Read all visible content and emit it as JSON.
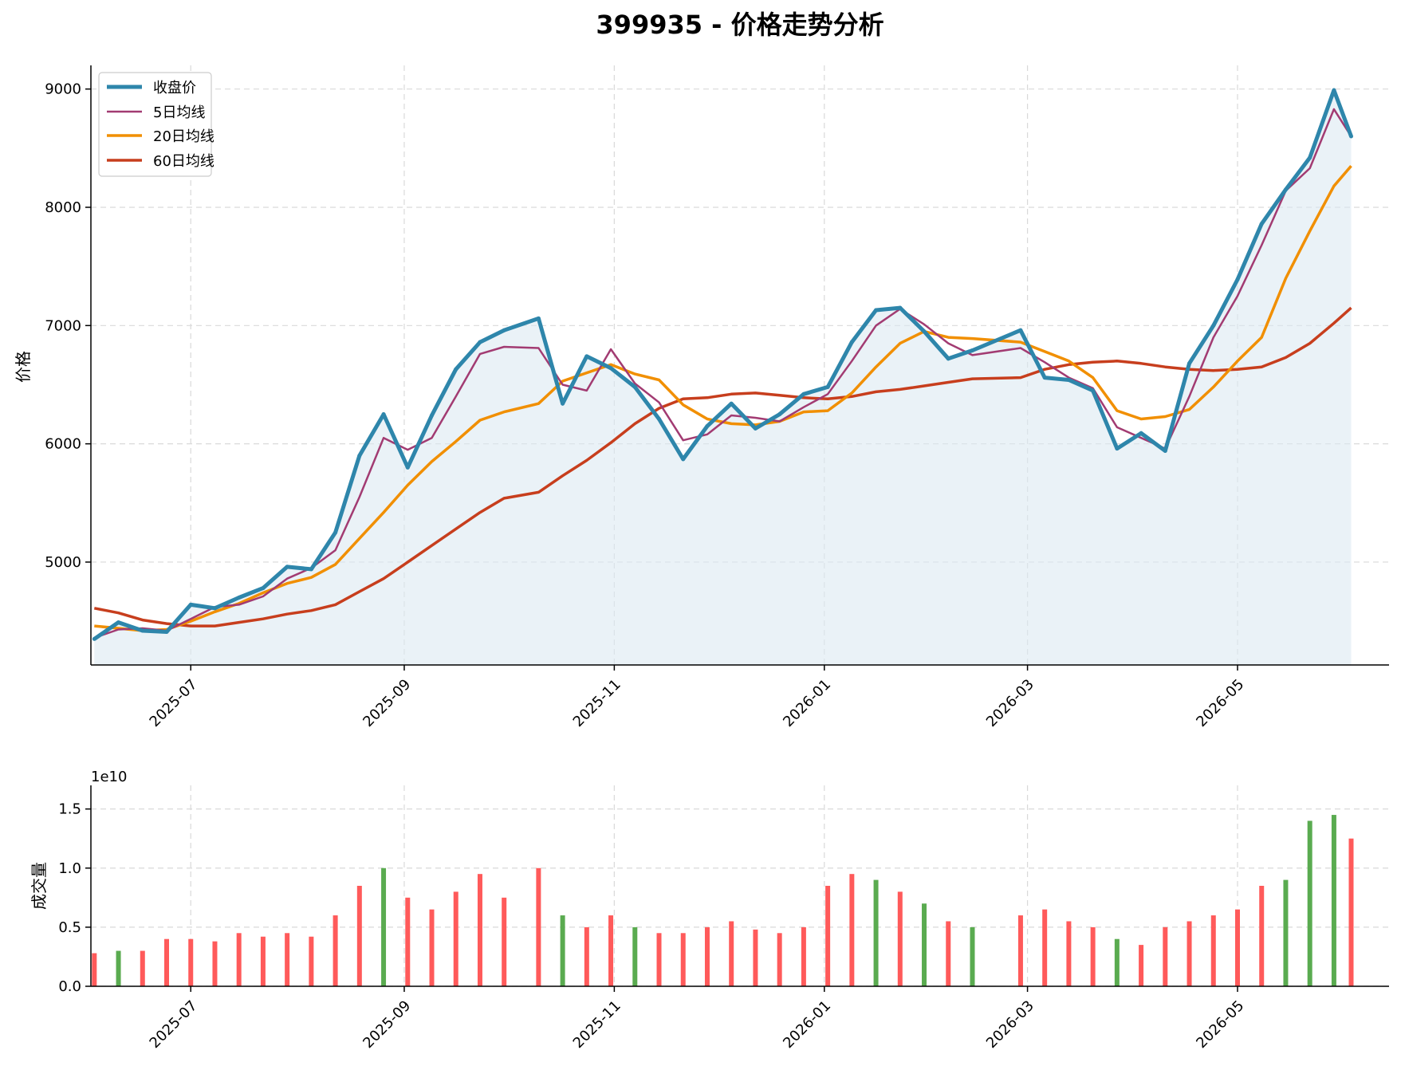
{
  "title": "399935 - 价格走势分析",
  "colors": {
    "close": "#2e86ab",
    "ma5": "#a23b72",
    "ma20": "#f18f01",
    "ma60": "#c73e1d",
    "fill": "#dce9f2",
    "up": "#ff5a5a",
    "down": "#5aab50"
  },
  "legend": {
    "close": "收盘价",
    "ma5": "5日均线",
    "ma20": "20日均线",
    "ma60": "60日均线"
  },
  "price_ticks": [
    "5000",
    "6000",
    "7000",
    "8000",
    "9000"
  ],
  "volume_ticks": [
    "0.0",
    "0.5",
    "1.0",
    "1.5"
  ],
  "x_ticks": [
    "2025-07",
    "2025-09",
    "2025-11",
    "2026-01",
    "2026-03",
    "2026-05"
  ],
  "volume_offset_text": "1e10",
  "volume_ylabel": "成交量",
  "price_ylabel": "价格",
  "chart_data": [
    {
      "type": "line",
      "title": "399935 - 价格走势分析",
      "ylabel": "价格",
      "ylim": [
        4130,
        9200
      ],
      "xlim": [
        "2025-06-02",
        "2026-06-14"
      ],
      "grid": true,
      "legend_position": "top-left",
      "x": [
        "2025-06-03",
        "2025-06-10",
        "2025-06-17",
        "2025-06-24",
        "2025-07-01",
        "2025-07-08",
        "2025-07-15",
        "2025-07-22",
        "2025-07-29",
        "2025-08-05",
        "2025-08-12",
        "2025-08-19",
        "2025-08-26",
        "2025-09-02",
        "2025-09-09",
        "2025-09-16",
        "2025-09-23",
        "2025-09-30",
        "2025-10-10",
        "2025-10-17",
        "2025-10-24",
        "2025-10-31",
        "2025-11-07",
        "2025-11-14",
        "2025-11-21",
        "2025-11-28",
        "2025-12-05",
        "2025-12-12",
        "2025-12-19",
        "2025-12-26",
        "2026-01-02",
        "2026-01-09",
        "2026-01-16",
        "2026-01-23",
        "2026-01-30",
        "2026-02-06",
        "2026-02-13",
        "2026-02-27",
        "2026-03-06",
        "2026-03-13",
        "2026-03-20",
        "2026-03-27",
        "2026-04-03",
        "2026-04-10",
        "2026-04-17",
        "2026-04-24",
        "2026-05-01",
        "2026-05-08",
        "2026-05-15",
        "2026-05-22",
        "2026-05-29",
        "2026-06-03"
      ],
      "series": [
        {
          "name": "收盘价",
          "values": [
            4350,
            4490,
            4420,
            4410,
            4640,
            4610,
            4700,
            4780,
            4960,
            4940,
            5250,
            5900,
            6250,
            5800,
            6240,
            6630,
            6860,
            6960,
            7060,
            6340,
            6740,
            6640,
            6480,
            6210,
            5870,
            6150,
            6340,
            6130,
            6250,
            6420,
            6480,
            6860,
            7130,
            7150,
            6950,
            6720,
            6790,
            6960,
            6560,
            6540,
            6450,
            5960,
            6090,
            5940,
            6680,
            7000,
            7390,
            7860,
            8150,
            8420,
            8990,
            8600
          ]
        },
        {
          "name": "5日均线",
          "values": [
            4360,
            4430,
            4440,
            4420,
            4520,
            4620,
            4640,
            4710,
            4860,
            4950,
            5100,
            5550,
            6050,
            5950,
            6050,
            6400,
            6760,
            6820,
            6810,
            6500,
            6450,
            6800,
            6510,
            6350,
            6030,
            6080,
            6240,
            6220,
            6190,
            6310,
            6420,
            6700,
            7000,
            7140,
            7010,
            6850,
            6750,
            6810,
            6690,
            6560,
            6470,
            6140,
            6050,
            5960,
            6400,
            6900,
            7250,
            7680,
            8140,
            8330,
            8830,
            8600
          ]
        },
        {
          "name": "20日均线",
          "values": [
            4460,
            4440,
            4420,
            4430,
            4500,
            4580,
            4650,
            4740,
            4820,
            4870,
            4980,
            5200,
            5420,
            5650,
            5850,
            6020,
            6200,
            6270,
            6340,
            6530,
            6600,
            6670,
            6590,
            6540,
            6330,
            6210,
            6170,
            6160,
            6190,
            6270,
            6280,
            6430,
            6650,
            6850,
            6950,
            6900,
            6890,
            6860,
            6780,
            6700,
            6560,
            6280,
            6210,
            6230,
            6290,
            6480,
            6700,
            6900,
            7400,
            7800,
            8180,
            8350
          ]
        },
        {
          "name": "60日均线",
          "values": [
            4610,
            4570,
            4510,
            4480,
            4460,
            4460,
            4490,
            4520,
            4560,
            4590,
            4640,
            4750,
            4860,
            5000,
            5140,
            5280,
            5420,
            5540,
            5590,
            5730,
            5860,
            6010,
            6170,
            6300,
            6380,
            6390,
            6420,
            6430,
            6410,
            6390,
            6380,
            6400,
            6440,
            6460,
            6490,
            6520,
            6550,
            6560,
            6630,
            6670,
            6690,
            6700,
            6680,
            6650,
            6630,
            6620,
            6630,
            6650,
            6730,
            6850,
            7020,
            7150
          ]
        }
      ]
    },
    {
      "type": "bar",
      "ylabel": "成交量",
      "ylim": [
        0,
        1.7
      ],
      "unit_multiplier": "1e10",
      "grid": true,
      "x": [
        "2025-06-03",
        "2025-06-10",
        "2025-06-17",
        "2025-06-24",
        "2025-07-01",
        "2025-07-08",
        "2025-07-15",
        "2025-07-22",
        "2025-07-29",
        "2025-08-05",
        "2025-08-12",
        "2025-08-19",
        "2025-08-26",
        "2025-09-02",
        "2025-09-09",
        "2025-09-16",
        "2025-09-23",
        "2025-09-30",
        "2025-10-10",
        "2025-10-17",
        "2025-10-24",
        "2025-10-31",
        "2025-11-07",
        "2025-11-14",
        "2025-11-21",
        "2025-11-28",
        "2025-12-05",
        "2025-12-12",
        "2025-12-19",
        "2025-12-26",
        "2026-01-02",
        "2026-01-09",
        "2026-01-16",
        "2026-01-23",
        "2026-01-30",
        "2026-02-06",
        "2026-02-13",
        "2026-02-27",
        "2026-03-06",
        "2026-03-13",
        "2026-03-20",
        "2026-03-27",
        "2026-04-03",
        "2026-04-10",
        "2026-04-17",
        "2026-04-24",
        "2026-05-01",
        "2026-05-08",
        "2026-05-15",
        "2026-05-22",
        "2026-05-29",
        "2026-06-03"
      ],
      "values": [
        0.28,
        0.3,
        0.3,
        0.4,
        0.4,
        0.38,
        0.45,
        0.42,
        0.45,
        0.42,
        0.6,
        0.85,
        1.0,
        0.75,
        0.65,
        0.8,
        0.95,
        0.75,
        1.0,
        0.6,
        0.5,
        0.6,
        0.5,
        0.45,
        0.45,
        0.5,
        0.55,
        0.48,
        0.45,
        0.5,
        0.85,
        0.95,
        0.9,
        0.8,
        0.7,
        0.55,
        0.5,
        0.6,
        0.65,
        0.55,
        0.5,
        0.4,
        0.35,
        0.5,
        0.55,
        0.6,
        0.65,
        0.85,
        0.9,
        1.4,
        1.45,
        1.25
      ],
      "up": [
        true,
        false,
        true,
        true,
        true,
        true,
        true,
        true,
        true,
        true,
        true,
        true,
        false,
        true,
        true,
        true,
        true,
        true,
        true,
        false,
        true,
        true,
        false,
        true,
        true,
        true,
        true,
        true,
        true,
        true,
        true,
        true,
        false,
        true,
        false,
        true,
        false,
        true,
        true,
        true,
        true,
        false,
        true,
        true,
        true,
        true,
        true,
        true,
        false,
        false,
        false,
        true
      ]
    }
  ]
}
